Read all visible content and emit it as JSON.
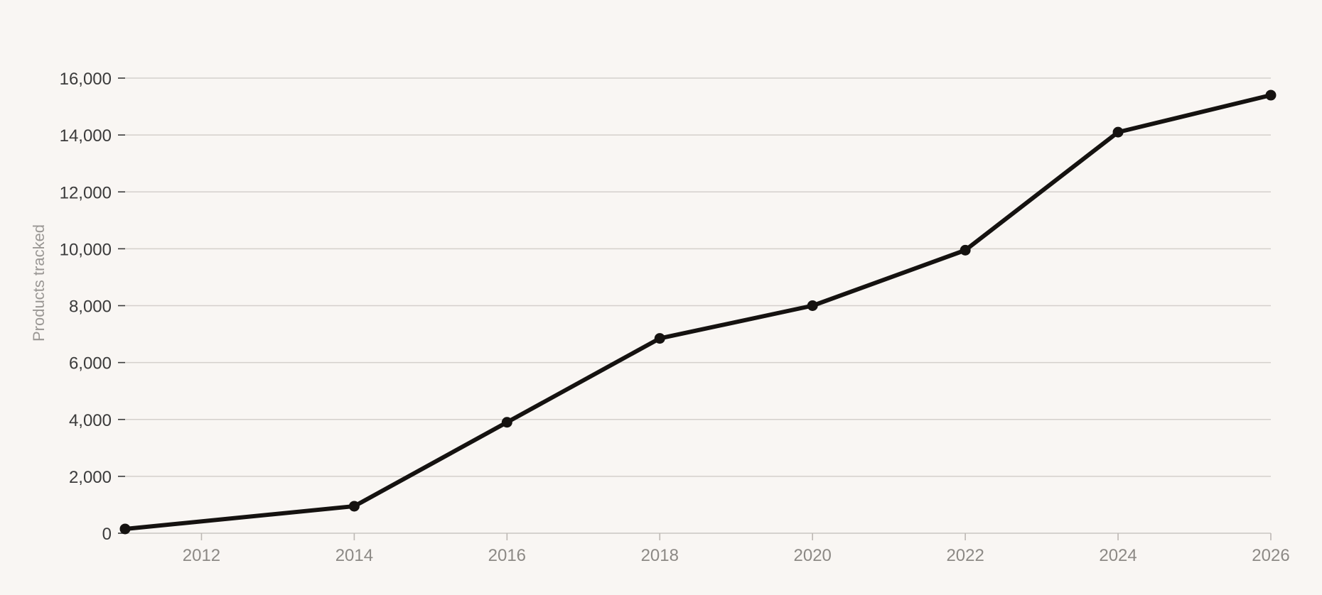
{
  "chart_data": {
    "type": "line",
    "title": "",
    "xlabel": "",
    "ylabel": "Products tracked",
    "xlim": [
      2011,
      2026
    ],
    "ylim": [
      0,
      16000
    ],
    "x_ticks": [
      2012,
      2014,
      2016,
      2018,
      2020,
      2022,
      2024,
      2026
    ],
    "y_ticks": [
      0,
      2000,
      4000,
      6000,
      8000,
      10000,
      12000,
      14000,
      16000
    ],
    "y_tick_labels": [
      "0",
      "2,000",
      "4,000",
      "6,000",
      "8,000",
      "10,000",
      "12,000",
      "14,000",
      "16,000"
    ],
    "grid": "horizontal",
    "legend": "none",
    "series": [
      {
        "x": [
          2011,
          2014,
          2016,
          2018,
          2020,
          2022,
          2024,
          2026
        ],
        "values": [
          150,
          950,
          3900,
          6850,
          8000,
          9950,
          14100,
          15400
        ],
        "color": "#151210"
      }
    ],
    "colors": {
      "background": "#f9f6f3",
      "line": "#151210",
      "grid": "#d4d0cc"
    }
  }
}
